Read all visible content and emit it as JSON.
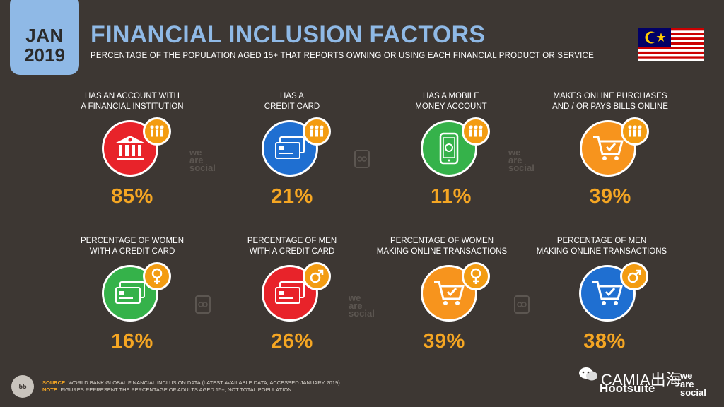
{
  "header": {
    "month": "JAN",
    "year": "2019",
    "title": "FINANCIAL INCLUSION FACTORS",
    "subtitle": "PERCENTAGE OF THE POPULATION AGED 15+ THAT REPORTS OWNING OR USING EACH FINANCIAL PRODUCT OR SERVICE"
  },
  "colors": {
    "background": "#3d3733",
    "accent_blue": "#8fb9e6",
    "value_orange": "#f5a623",
    "red": "#e8232a",
    "blue": "#1f6fd1",
    "green": "#35b24a",
    "orange": "#f7941d"
  },
  "row1": [
    {
      "label": "HAS AN ACCOUNT WITH\nA FINANCIAL INSTITUTION",
      "value": "85%",
      "icon": "bank-icon",
      "badge_icon": "people-icon"
    },
    {
      "label": "HAS A\nCREDIT CARD",
      "value": "21%",
      "icon": "credit-card-icon",
      "badge_icon": "people-icon"
    },
    {
      "label": "HAS A MOBILE\nMONEY ACCOUNT",
      "value": "11%",
      "icon": "mobile-money-icon",
      "badge_icon": "people-icon"
    },
    {
      "label": "MAKES ONLINE PURCHASES\nAND / OR PAYS BILLS ONLINE",
      "value": "39%",
      "icon": "shopping-cart-icon",
      "badge_icon": "people-icon"
    }
  ],
  "row2": [
    {
      "label": "PERCENTAGE OF WOMEN\nWITH A CREDIT CARD",
      "value": "16%",
      "icon": "credit-card-icon",
      "badge_icon": "female-icon"
    },
    {
      "label": "PERCENTAGE OF MEN\nWITH A CREDIT CARD",
      "value": "26%",
      "icon": "credit-card-icon",
      "badge_icon": "male-icon"
    },
    {
      "label": "PERCENTAGE OF WOMEN\nMAKING ONLINE TRANSACTIONS",
      "value": "39%",
      "icon": "shopping-cart-icon",
      "badge_icon": "female-icon"
    },
    {
      "label": "PERCENTAGE OF MEN\nMAKING ONLINE TRANSACTIONS",
      "value": "38%",
      "icon": "shopping-cart-icon",
      "badge_icon": "male-icon"
    }
  ],
  "watermark": "we\nare\nsocial",
  "footer": {
    "page_number": "55",
    "source_key": "SOURCE:",
    "source_text": "WORLD BANK GLOBAL FINANCIAL INCLUSION DATA (LATEST AVAILABLE DATA, ACCESSED JANUARY 2019).",
    "note_key": "NOTE:",
    "note_text": "FIGURES REPRESENT THE PERCENTAGE OF ADULTS AGED 15+, NOT TOTAL POPULATION.",
    "brand_overlay": "CAMIA出海",
    "hootsuite": "Hootsuite",
    "we_are_social": "we\nare\nsocial"
  }
}
